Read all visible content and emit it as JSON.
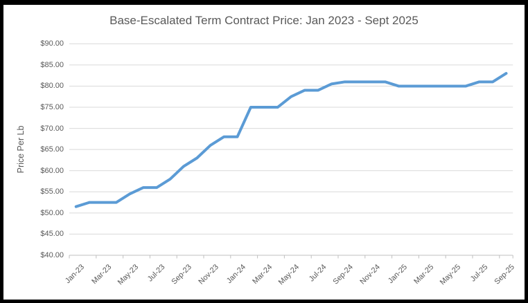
{
  "window": {
    "background": "#FFFFFF",
    "frame_border_color": "#000000"
  },
  "chart_data": {
    "type": "line",
    "title": "Base-Escalated Term Contract Price: Jan 2023 - Sept 2025",
    "xlabel": "",
    "ylabel": "Price Per Lb",
    "legend": "none",
    "grid": "horizontal",
    "ylim": [
      40,
      90
    ],
    "ytick_step": 5,
    "ytick_values": [
      40,
      45,
      50,
      55,
      60,
      65,
      70,
      75,
      80,
      85,
      90
    ],
    "ytick_labels": [
      "$40.00",
      "$45.00",
      "$50.00",
      "$55.00",
      "$60.00",
      "$65.00",
      "$70.00",
      "$75.00",
      "$80.00",
      "$85.00",
      "$90.00"
    ],
    "categories": [
      "Jan-23",
      "Feb-23",
      "Mar-23",
      "Apr-23",
      "May-23",
      "Jun-23",
      "Jul-23",
      "Aug-23",
      "Sep-23",
      "Oct-23",
      "Nov-23",
      "Dec-23",
      "Jan-24",
      "Feb-24",
      "Mar-24",
      "Apr-24",
      "May-24",
      "Jun-24",
      "Jul-24",
      "Aug-24",
      "Sep-24",
      "Oct-24",
      "Nov-24",
      "Dec-24",
      "Jan-25",
      "Feb-25",
      "Mar-25",
      "Apr-25",
      "May-25",
      "Jun-25",
      "Jul-25",
      "Aug-25",
      "Sep-25"
    ],
    "x_tick_interval": 2,
    "x_tick_labels": [
      "Jan-23",
      "Mar-23",
      "May-23",
      "Jul-23",
      "Sep-23",
      "Nov-23",
      "Jan-24",
      "Mar-24",
      "May-24",
      "Jul-24",
      "Sep-24",
      "Nov-24",
      "Jan-25",
      "Mar-25",
      "May-25",
      "Jul-25",
      "Sep-25"
    ],
    "values": [
      51.5,
      52.5,
      52.5,
      52.5,
      54.5,
      56,
      56,
      58,
      61,
      63,
      66,
      68,
      68,
      75,
      75,
      75,
      77.5,
      79,
      79,
      80.5,
      81,
      81,
      81,
      81,
      80,
      80,
      80,
      80,
      80,
      80,
      81,
      81,
      83
    ],
    "colors": {
      "line": "#5B9BD5",
      "grid": "#D9D9D9",
      "axis": "#BFBFBF",
      "text": "#595959"
    }
  }
}
